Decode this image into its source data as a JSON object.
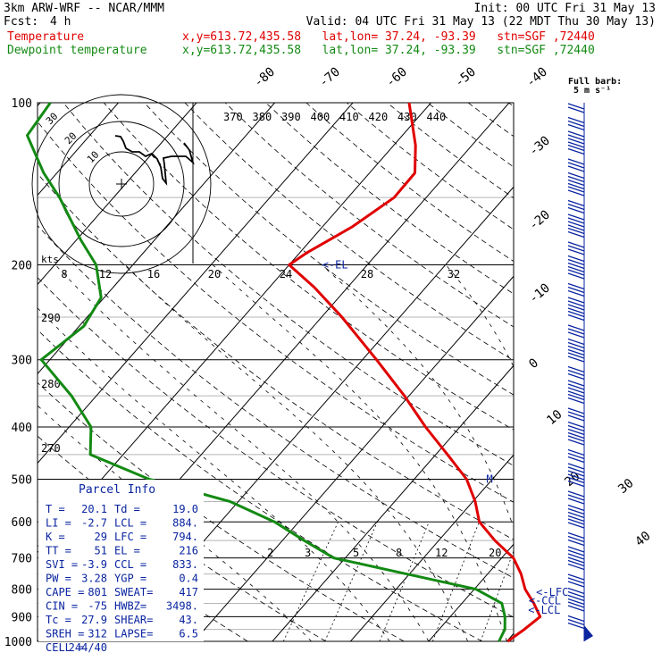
{
  "header": {
    "model": "3km ARW-WRF -- NCAR/MMM",
    "init": "Init: 00 UTC Fri 31 May 13",
    "fcst_label": "Fcst:",
    "fcst_value": "4 h",
    "valid": "Valid: 04 UTC Fri 31 May 13 (22 MDT Thu 30 May 13)",
    "temp_label": "Temperature",
    "dew_label": "Dewpoint temperature",
    "temp_loc": "x,y=613.72,435.58   lat,lon= 37.24, -93.39   stn=SGF ,72440",
    "dew_loc": "x,y=613.72,435.58   lat,lon= 37.24, -93.39   stn=SGF ,72440"
  },
  "colors": {
    "temperature": "#e00000",
    "dewpoint": "#138a13",
    "annotation": "#0a24a0",
    "grid": "#000000"
  },
  "chart_data": {
    "type": "skew-t",
    "pressure_levels": [
      "100",
      "200",
      "300",
      "400",
      "500",
      "600",
      "700",
      "800",
      "900",
      "1000"
    ],
    "isotherm_labels": [
      "-80",
      "-70",
      "-60",
      "-50",
      "-40",
      "-30",
      "-20",
      "-10",
      "0",
      "10",
      "20",
      "30",
      "40"
    ],
    "theta_labels": [
      "370",
      "380",
      "390",
      "400",
      "410",
      "420",
      "430",
      "440"
    ],
    "theta_left_labels": [
      "290",
      "280",
      "270"
    ],
    "mixing_ratio_labels": [
      "2",
      "3",
      "5",
      "8",
      "12",
      "20"
    ],
    "temperature_profile": [
      {
        "p": 1000,
        "t": 20.1
      },
      {
        "p": 950,
        "t": 20.9
      },
      {
        "p": 900,
        "t": 21.5
      },
      {
        "p": 850,
        "t": 19.2
      },
      {
        "p": 800,
        "t": 16.5
      },
      {
        "p": 750,
        "t": 14.3
      },
      {
        "p": 700,
        "t": 11.5
      },
      {
        "p": 650,
        "t": 7.2
      },
      {
        "p": 600,
        "t": 3.1
      },
      {
        "p": 550,
        "t": 0.3
      },
      {
        "p": 500,
        "t": -3.3
      },
      {
        "p": 450,
        "t": -8.5
      },
      {
        "p": 400,
        "t": -14.4
      },
      {
        "p": 350,
        "t": -20.6
      },
      {
        "p": 300,
        "t": -28.2
      },
      {
        "p": 250,
        "t": -37.4
      },
      {
        "p": 220,
        "t": -44.3
      },
      {
        "p": 200,
        "t": -50.0
      },
      {
        "p": 190,
        "t": -49.1
      },
      {
        "p": 170,
        "t": -46.2
      },
      {
        "p": 150,
        "t": -44.1
      },
      {
        "p": 135,
        "t": -44.2
      },
      {
        "p": 120,
        "t": -47.2
      },
      {
        "p": 100,
        "t": -52.8
      }
    ],
    "dewpoint_profile": [
      {
        "p": 1000,
        "t": 19.0
      },
      {
        "p": 950,
        "t": 18.4
      },
      {
        "p": 900,
        "t": 17.0
      },
      {
        "p": 850,
        "t": 15.1
      },
      {
        "p": 800,
        "t": 10.2
      },
      {
        "p": 750,
        "t": -0.3
      },
      {
        "p": 700,
        "t": -11.5
      },
      {
        "p": 650,
        "t": -17.2
      },
      {
        "p": 600,
        "t": -23.1
      },
      {
        "p": 550,
        "t": -31.1
      },
      {
        "p": 500,
        "t": -43.9
      },
      {
        "p": 450,
        "t": -54.2
      },
      {
        "p": 400,
        "t": -57.2
      },
      {
        "p": 350,
        "t": -63.2
      },
      {
        "p": 300,
        "t": -71.1
      },
      {
        "p": 260,
        "t": -69.4
      },
      {
        "p": 230,
        "t": -70.4
      },
      {
        "p": 200,
        "t": -74.7
      },
      {
        "p": 180,
        "t": -79.4
      },
      {
        "p": 150,
        "t": -86.9
      },
      {
        "p": 135,
        "t": -91.7
      },
      {
        "p": 115,
        "t": -98.0
      },
      {
        "p": 100,
        "t": -98.7
      }
    ],
    "annotations": [
      {
        "p": 200,
        "t": -46,
        "text": "<-EL"
      },
      {
        "p": 500,
        "t": -1,
        "text": "M"
      },
      {
        "p": 810,
        "t": 18,
        "text": "<-LFC"
      },
      {
        "p": 840,
        "t": 18,
        "text": "<-CCL"
      },
      {
        "p": 875,
        "t": 19,
        "text": "<-LCL"
      }
    ],
    "hodograph": {
      "ring_labels": [
        "30",
        "20",
        "10"
      ],
      "kts_label": "kts",
      "axis_labels": [
        "8",
        "12",
        "16",
        "20",
        "24",
        "28",
        "32"
      ]
    },
    "parcel_info": {
      "title": "Parcel Info",
      "rows": [
        [
          "T  =",
          "20.1",
          "Td =",
          "19.0"
        ],
        [
          "LI =",
          "-2.7",
          "LCL =",
          "884."
        ],
        [
          "K  =",
          "29",
          "LFC =",
          "794."
        ],
        [
          "TT =",
          "51",
          "EL =",
          "216"
        ],
        [
          "SVI =",
          "-3.9",
          "CCL =",
          "833."
        ],
        [
          "PW =",
          "3.28",
          "YGP =",
          "0.4"
        ],
        [
          "CAPE =",
          "801",
          "SWEAT=",
          "417"
        ],
        [
          "CIN =",
          "-75",
          "HWBZ=",
          "3498."
        ],
        [
          "Tc =",
          "27.9",
          "SHEAR=",
          "43."
        ],
        [
          "SREH =",
          "312",
          "LAPSE=",
          "6.5"
        ],
        [
          "CELL =",
          "244/40",
          "",
          ""
        ]
      ]
    },
    "barb_legend": {
      "line1": "Full barb:",
      "line2": "5 m s⁻¹"
    }
  }
}
